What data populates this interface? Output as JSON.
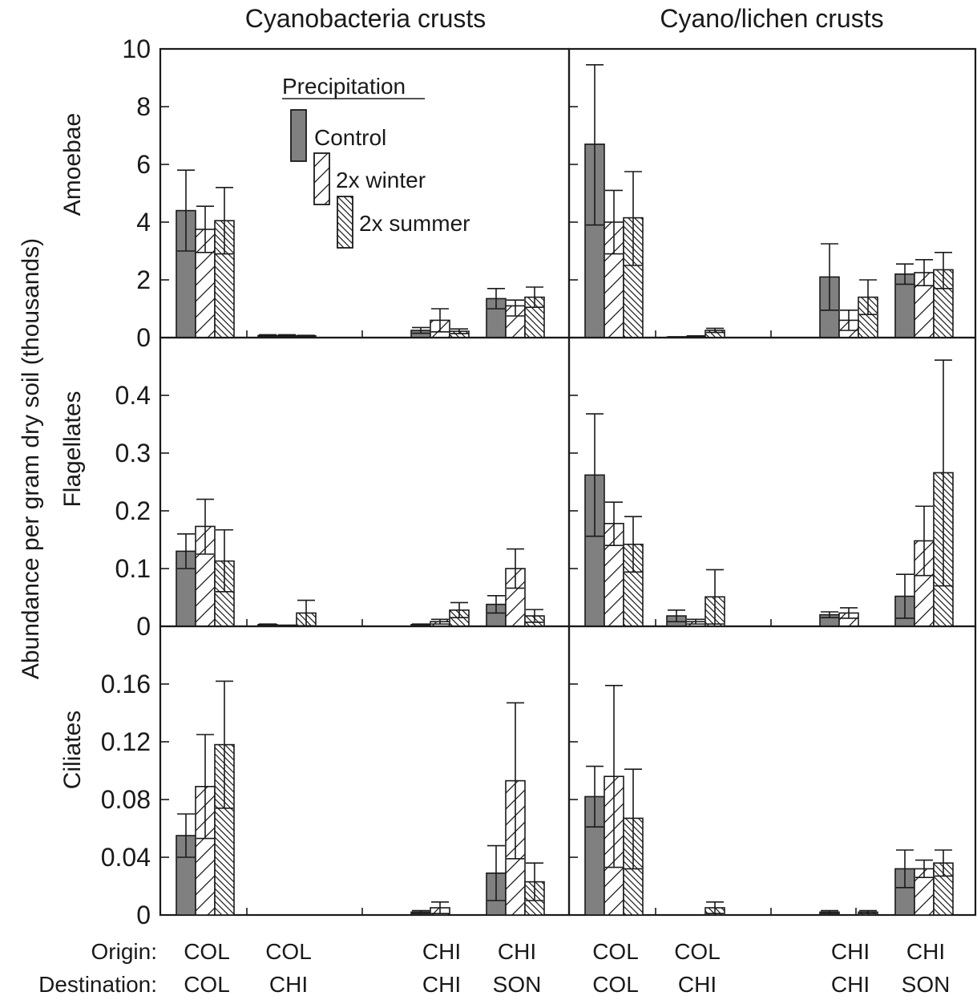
{
  "figure": {
    "column_titles": [
      "Cyanobacteria crusts",
      "Cyano/lichen crusts"
    ],
    "row_labels": [
      "Amoebae",
      "Flagellates",
      "Ciliates"
    ],
    "ylabel": "Abundance per gram dry soil (thousands)",
    "origin_label": "Origin:",
    "destination_label": "Destination:",
    "legend": {
      "title": "Precipitation",
      "entries": [
        "Control",
        "2x winter",
        "2x summer"
      ]
    },
    "colors": {
      "control": "#808080",
      "axis": "#1a1a1a",
      "open": "#ffffff"
    }
  },
  "chart_data": [
    {
      "type": "bar",
      "panel": "Cyanobacteria crusts / Amoebae",
      "categories": [
        "COL/COL",
        "COL/CHI",
        "CHI/CHI",
        "CHI/SON"
      ],
      "origin": [
        "COL",
        "COL",
        "CHI",
        "CHI"
      ],
      "destination": [
        "COL",
        "CHI",
        "CHI",
        "SON"
      ],
      "ylim": [
        0,
        10
      ],
      "yticks": [
        "0",
        "2",
        "4",
        "6",
        "8",
        "10"
      ],
      "series": [
        {
          "name": "Control",
          "values": [
            4.4,
            0.07,
            0.25,
            1.35
          ],
          "upper": [
            5.8,
            0.1,
            0.35,
            1.7
          ],
          "lower": [
            3.0,
            0.04,
            0.15,
            1.0
          ]
        },
        {
          "name": "2x winter",
          "values": [
            3.75,
            0.07,
            0.6,
            1.1
          ],
          "upper": [
            4.55,
            0.1,
            1.0,
            1.3
          ],
          "lower": [
            2.95,
            0.04,
            0.2,
            0.75
          ]
        },
        {
          "name": "2x summer",
          "values": [
            4.05,
            0.06,
            0.22,
            1.4
          ],
          "upper": [
            5.2,
            0.08,
            0.3,
            1.75
          ],
          "lower": [
            2.9,
            0.04,
            0.14,
            1.05
          ]
        }
      ]
    },
    {
      "type": "bar",
      "panel": "Cyano/lichen crusts / Amoebae",
      "categories": [
        "COL/COL",
        "COL/CHI",
        "CHI/CHI",
        "CHI/SON"
      ],
      "origin": [
        "COL",
        "COL",
        "CHI",
        "CHI"
      ],
      "destination": [
        "COL",
        "CHI",
        "CHI",
        "SON"
      ],
      "ylim": [
        0,
        10
      ],
      "yticks": [
        "0",
        "2",
        "4",
        "6",
        "8",
        "10"
      ],
      "series": [
        {
          "name": "Control",
          "values": [
            6.7,
            0.02,
            2.1,
            2.2
          ],
          "upper": [
            9.45,
            0.03,
            3.25,
            2.55
          ],
          "lower": [
            3.9,
            0.01,
            0.95,
            1.85
          ]
        },
        {
          "name": "2x winter",
          "values": [
            4.0,
            0.04,
            0.6,
            2.25
          ],
          "upper": [
            5.1,
            0.06,
            0.95,
            2.7
          ],
          "lower": [
            2.9,
            0.02,
            0.25,
            1.8
          ]
        },
        {
          "name": "2x summer",
          "values": [
            4.15,
            0.25,
            1.4,
            2.35
          ],
          "upper": [
            5.75,
            0.32,
            2.0,
            2.95
          ],
          "lower": [
            2.5,
            0.18,
            0.8,
            1.7
          ]
        }
      ]
    },
    {
      "type": "bar",
      "panel": "Cyanobacteria crusts / Flagellates",
      "categories": [
        "COL/COL",
        "COL/CHI",
        "CHI/CHI",
        "CHI/SON"
      ],
      "origin": [
        "COL",
        "COL",
        "CHI",
        "CHI"
      ],
      "destination": [
        "COL",
        "CHI",
        "CHI",
        "SON"
      ],
      "ylim": [
        0,
        0.5
      ],
      "yticks": [
        "0",
        "0.1",
        "0.2",
        "0.3",
        "0.4"
      ],
      "series": [
        {
          "name": "Control",
          "values": [
            0.13,
            0.003,
            0.003,
            0.038
          ],
          "upper": [
            0.16,
            0.004,
            0.004,
            0.053
          ],
          "lower": [
            0.1,
            0.002,
            0.002,
            0.023
          ]
        },
        {
          "name": "2x winter",
          "values": [
            0.173,
            0.001,
            0.008,
            0.1
          ],
          "upper": [
            0.22,
            0.002,
            0.012,
            0.134
          ],
          "lower": [
            0.125,
            0.0,
            0.004,
            0.066
          ]
        },
        {
          "name": "2x summer",
          "values": [
            0.113,
            0.023,
            0.028,
            0.018
          ],
          "upper": [
            0.167,
            0.045,
            0.041,
            0.029
          ],
          "lower": [
            0.06,
            0.001,
            0.015,
            0.007
          ]
        }
      ]
    },
    {
      "type": "bar",
      "panel": "Cyano/lichen crusts / Flagellates",
      "categories": [
        "COL/COL",
        "COL/CHI",
        "CHI/CHI",
        "CHI/SON"
      ],
      "origin": [
        "COL",
        "COL",
        "CHI",
        "CHI"
      ],
      "destination": [
        "COL",
        "CHI",
        "CHI",
        "SON"
      ],
      "ylim": [
        0,
        0.5
      ],
      "yticks": [
        "0",
        "0.1",
        "0.2",
        "0.3",
        "0.4"
      ],
      "series": [
        {
          "name": "Control",
          "values": [
            0.262,
            0.018,
            0.02,
            0.052
          ],
          "upper": [
            0.368,
            0.028,
            0.025,
            0.09
          ],
          "lower": [
            0.156,
            0.008,
            0.015,
            0.014
          ]
        },
        {
          "name": "2x winter",
          "values": [
            0.178,
            0.008,
            0.023,
            0.148
          ],
          "upper": [
            0.215,
            0.012,
            0.032,
            0.208
          ],
          "lower": [
            0.14,
            0.004,
            0.014,
            0.088
          ]
        },
        {
          "name": "2x summer",
          "values": [
            0.142,
            0.051,
            0.0,
            0.266
          ],
          "upper": [
            0.19,
            0.098,
            0.0,
            0.461
          ],
          "lower": [
            0.094,
            0.004,
            0.0,
            0.07
          ]
        }
      ]
    },
    {
      "type": "bar",
      "panel": "Cyanobacteria crusts / Ciliates",
      "categories": [
        "COL/COL",
        "COL/CHI",
        "CHI/CHI",
        "CHI/SON"
      ],
      "origin": [
        "COL",
        "COL",
        "CHI",
        "CHI"
      ],
      "destination": [
        "COL",
        "CHI",
        "CHI",
        "SON"
      ],
      "ylim": [
        0,
        0.2
      ],
      "yticks": [
        "0",
        "0.04",
        "0.08",
        "0.12",
        "0.16"
      ],
      "series": [
        {
          "name": "Control",
          "values": [
            0.055,
            0.0,
            0.002,
            0.029
          ],
          "upper": [
            0.07,
            0.0,
            0.003,
            0.048
          ],
          "lower": [
            0.04,
            0.0,
            0.001,
            0.01
          ]
        },
        {
          "name": "2x winter",
          "values": [
            0.089,
            0.0,
            0.005,
            0.093
          ],
          "upper": [
            0.125,
            0.0,
            0.009,
            0.147
          ],
          "lower": [
            0.053,
            0.0,
            0.001,
            0.039
          ]
        },
        {
          "name": "2x summer",
          "values": [
            0.118,
            0.0,
            0.0,
            0.023
          ],
          "upper": [
            0.162,
            0.0,
            0.0,
            0.036
          ],
          "lower": [
            0.074,
            0.0,
            0.0,
            0.01
          ]
        }
      ]
    },
    {
      "type": "bar",
      "panel": "Cyano/lichen crusts / Ciliates",
      "categories": [
        "COL/COL",
        "COL/CHI",
        "CHI/CHI",
        "CHI/SON"
      ],
      "origin": [
        "COL",
        "COL",
        "CHI",
        "CHI"
      ],
      "destination": [
        "COL",
        "CHI",
        "CHI",
        "SON"
      ],
      "ylim": [
        0,
        0.2
      ],
      "yticks": [
        "0",
        "0.04",
        "0.08",
        "0.12",
        "0.16"
      ],
      "series": [
        {
          "name": "Control",
          "values": [
            0.082,
            0.0,
            0.002,
            0.032
          ],
          "upper": [
            0.103,
            0.0,
            0.003,
            0.045
          ],
          "lower": [
            0.061,
            0.0,
            0.001,
            0.019
          ]
        },
        {
          "name": "2x winter",
          "values": [
            0.096,
            0.0,
            0.0,
            0.032
          ],
          "upper": [
            0.159,
            0.0,
            0.0,
            0.038
          ],
          "lower": [
            0.033,
            0.0,
            0.0,
            0.026
          ]
        },
        {
          "name": "2x summer",
          "values": [
            0.067,
            0.005,
            0.002,
            0.036
          ],
          "upper": [
            0.101,
            0.009,
            0.003,
            0.045
          ],
          "lower": [
            0.032,
            0.001,
            0.001,
            0.027
          ]
        }
      ]
    }
  ]
}
